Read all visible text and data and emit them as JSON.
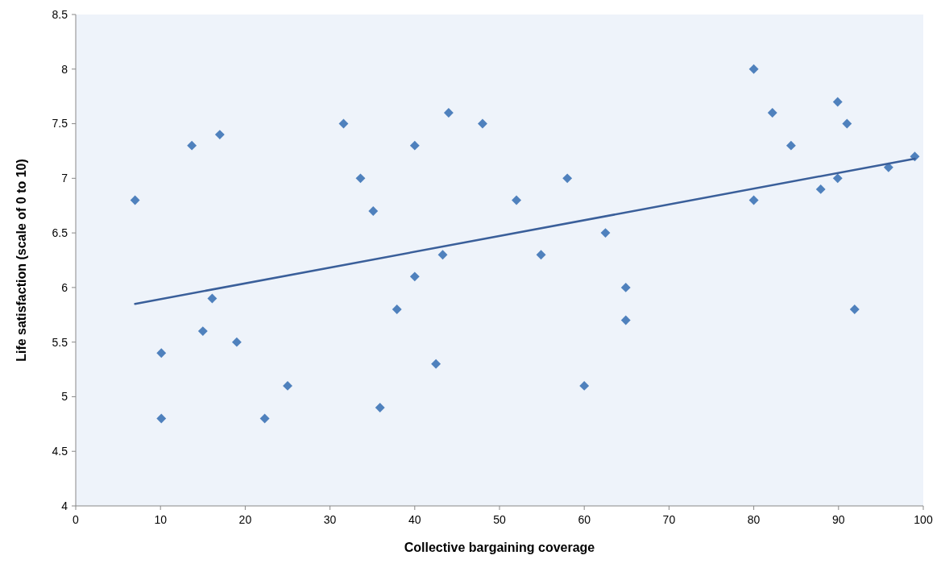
{
  "chart_data": {
    "type": "scatter",
    "xlabel": "Collective bargaining coverage",
    "ylabel": "Life satisfaction (scale of 0 to 10)",
    "xlim": [
      0,
      100
    ],
    "xticks": [
      0,
      10,
      20,
      30,
      40,
      50,
      60,
      70,
      80,
      90,
      100
    ],
    "ylim": [
      4,
      8.5
    ],
    "yticks": [
      4,
      4.5,
      5,
      5.5,
      6,
      6.5,
      7,
      7.5,
      8,
      8.5
    ],
    "grid": false,
    "series": [
      {
        "marker": "diamond",
        "color": "#4f81bd",
        "x": [
          7.0,
          10.1,
          10.1,
          13.7,
          15.0,
          16.1,
          17.0,
          19.0,
          22.3,
          25.0,
          31.6,
          33.6,
          35.1,
          35.9,
          37.9,
          40.0,
          40.0,
          42.5,
          43.3,
          44.0,
          48.0,
          52.0,
          54.9,
          58.0,
          60.0,
          62.5,
          64.9,
          64.9,
          80.0,
          80.0,
          82.2,
          84.4,
          87.9,
          89.9,
          89.9,
          91.0,
          91.9,
          95.9,
          99.0
        ],
        "values": [
          6.8,
          5.4,
          4.8,
          7.3,
          5.6,
          5.9,
          7.4,
          5.5,
          4.8,
          5.1,
          7.5,
          7.0,
          6.7,
          4.9,
          5.8,
          7.3,
          6.1,
          5.3,
          6.3,
          7.6,
          7.5,
          6.8,
          6.3,
          7.0,
          5.1,
          6.5,
          6.0,
          5.7,
          8.0,
          6.8,
          7.6,
          7.3,
          6.9,
          7.7,
          7.0,
          7.5,
          5.8,
          7.1,
          7.2
        ]
      },
      {
        "type": "line",
        "marker": "none",
        "line_style": "solid",
        "color": "#3a5f9a",
        "x": [
          7,
          99
        ],
        "values": [
          5.85,
          7.18
        ]
      }
    ]
  }
}
